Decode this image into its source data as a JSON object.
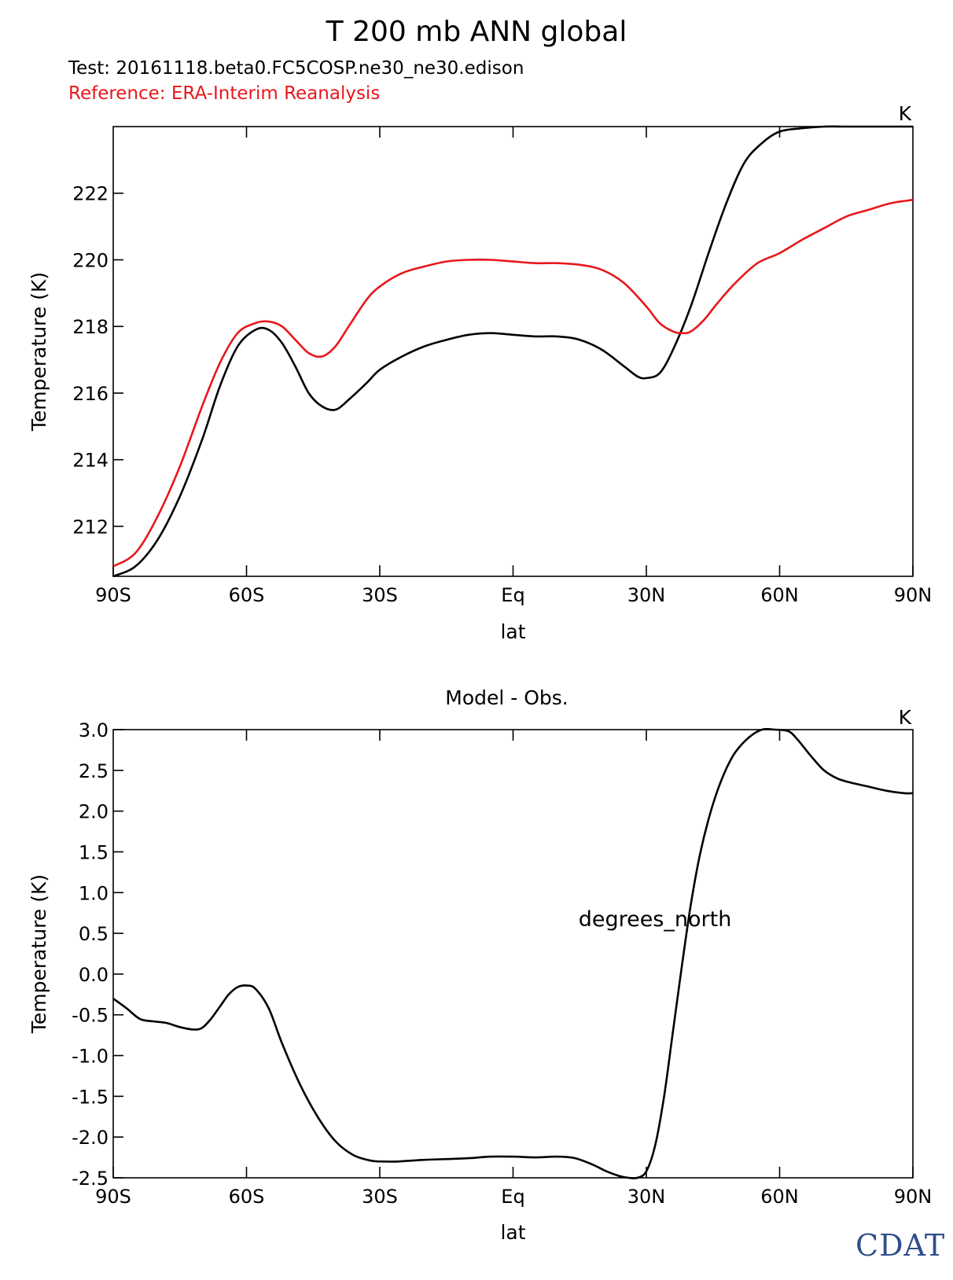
{
  "header": {
    "title": "T 200 mb ANN global",
    "test_label": "Test: 20161118.beta0.FC5COSP.ne30_ne30.edison",
    "reference_label": "Reference: ERA-Interim Reanalysis"
  },
  "colors": {
    "test": "#000000",
    "reference": "#e8171b",
    "logo": "#2f4f8a"
  },
  "logo": {
    "text": "CDAT"
  },
  "chart_data": [
    {
      "type": "line",
      "title": "",
      "units_label": "K",
      "xlabel": "lat",
      "ylabel": "Temperature (K)",
      "xlim": [
        -90,
        90
      ],
      "ylim": [
        210.5,
        224
      ],
      "xticks": [
        -90,
        -60,
        -30,
        0,
        30,
        60,
        90
      ],
      "xtick_labels": [
        "90S",
        "60S",
        "30S",
        "Eq",
        "30N",
        "60N",
        "90N"
      ],
      "yticks": [
        212,
        214,
        216,
        218,
        220,
        222
      ],
      "ytick_labels": [
        "212",
        "214",
        "216",
        "218",
        "220",
        "222"
      ],
      "series": [
        {
          "name": "Test",
          "color": "#000000",
          "x": [
            -90,
            -85,
            -80,
            -75,
            -70,
            -66,
            -62,
            -58,
            -55,
            -52,
            -49,
            -46,
            -43,
            -40,
            -37,
            -33,
            -30,
            -25,
            -20,
            -15,
            -10,
            -5,
            0,
            5,
            10,
            15,
            20,
            25,
            28,
            30,
            33,
            36,
            40,
            44,
            48,
            52,
            56,
            60,
            65,
            70,
            75,
            80,
            85,
            90
          ],
          "y": [
            210.5,
            210.8,
            211.6,
            212.9,
            214.6,
            216.2,
            217.4,
            217.9,
            217.9,
            217.5,
            216.8,
            216.0,
            215.6,
            215.5,
            215.8,
            216.3,
            216.7,
            217.1,
            217.4,
            217.6,
            217.75,
            217.8,
            217.75,
            217.7,
            217.7,
            217.6,
            217.3,
            216.8,
            216.5,
            216.45,
            216.6,
            217.3,
            218.6,
            220.2,
            221.7,
            222.9,
            223.5,
            223.85,
            223.95,
            224.0,
            224.0,
            224.0,
            224.0,
            224.0
          ]
        },
        {
          "name": "Reference",
          "color": "#e8171b",
          "x": [
            -90,
            -85,
            -80,
            -75,
            -70,
            -66,
            -62,
            -58,
            -55,
            -52,
            -49,
            -46,
            -43,
            -40,
            -37,
            -33,
            -30,
            -25,
            -20,
            -15,
            -10,
            -5,
            0,
            5,
            10,
            15,
            20,
            25,
            30,
            33,
            36,
            38,
            40,
            43,
            46,
            50,
            55,
            60,
            65,
            70,
            75,
            80,
            85,
            90
          ],
          "y": [
            210.8,
            211.2,
            212.3,
            213.8,
            215.6,
            216.9,
            217.8,
            218.1,
            218.15,
            218.0,
            217.6,
            217.2,
            217.1,
            217.4,
            218.0,
            218.8,
            219.2,
            219.6,
            219.8,
            219.95,
            220.0,
            220.0,
            219.95,
            219.9,
            219.9,
            219.85,
            219.7,
            219.3,
            218.6,
            218.1,
            217.85,
            217.8,
            217.85,
            218.2,
            218.7,
            219.3,
            219.9,
            220.2,
            220.6,
            220.95,
            221.3,
            221.5,
            221.7,
            221.8
          ]
        }
      ]
    },
    {
      "type": "line",
      "title": "Model - Obs.",
      "units_label": "K",
      "annotation": "degrees_north",
      "xlabel": "lat",
      "ylabel": "Temperature (K)",
      "xlim": [
        -90,
        90
      ],
      "ylim": [
        -2.5,
        3.0
      ],
      "xticks": [
        -90,
        -60,
        -30,
        0,
        30,
        60,
        90
      ],
      "xtick_labels": [
        "90S",
        "60S",
        "30S",
        "Eq",
        "30N",
        "60N",
        "90N"
      ],
      "yticks": [
        -2.5,
        -2.0,
        -1.5,
        -1.0,
        -0.5,
        0.0,
        0.5,
        1.0,
        1.5,
        2.0,
        2.5,
        3.0
      ],
      "ytick_labels": [
        "-2.5",
        "-2.0",
        "-1.5",
        "-1.0",
        "-0.5",
        "0.0",
        "0.5",
        "1.0",
        "1.5",
        "2.0",
        "2.5",
        "3.0"
      ],
      "series": [
        {
          "name": "Model - Obs.",
          "color": "#000000",
          "x": [
            -90,
            -87,
            -84,
            -81,
            -78,
            -75,
            -72,
            -70,
            -68,
            -66,
            -64,
            -62,
            -60,
            -58,
            -55,
            -52,
            -48,
            -44,
            -40,
            -36,
            -32,
            -29,
            -26,
            -20,
            -15,
            -10,
            -5,
            0,
            5,
            10,
            14,
            18,
            21,
            24,
            26,
            28,
            30,
            32,
            34,
            36,
            38,
            40,
            42,
            44,
            46,
            48,
            50,
            53,
            56,
            59,
            62,
            64,
            67,
            70,
            73,
            76,
            80,
            84,
            88,
            90
          ],
          "y": [
            -0.3,
            -0.42,
            -0.55,
            -0.58,
            -0.6,
            -0.65,
            -0.68,
            -0.66,
            -0.55,
            -0.4,
            -0.25,
            -0.16,
            -0.14,
            -0.18,
            -0.42,
            -0.85,
            -1.35,
            -1.75,
            -2.05,
            -2.22,
            -2.29,
            -2.3,
            -2.3,
            -2.28,
            -2.27,
            -2.26,
            -2.24,
            -2.24,
            -2.25,
            -2.24,
            -2.26,
            -2.34,
            -2.42,
            -2.48,
            -2.5,
            -2.5,
            -2.42,
            -2.1,
            -1.5,
            -0.7,
            0.1,
            0.85,
            1.45,
            1.9,
            2.25,
            2.52,
            2.72,
            2.9,
            3.0,
            3.0,
            2.98,
            2.88,
            2.68,
            2.5,
            2.4,
            2.35,
            2.3,
            2.25,
            2.22,
            2.22
          ]
        }
      ]
    }
  ]
}
